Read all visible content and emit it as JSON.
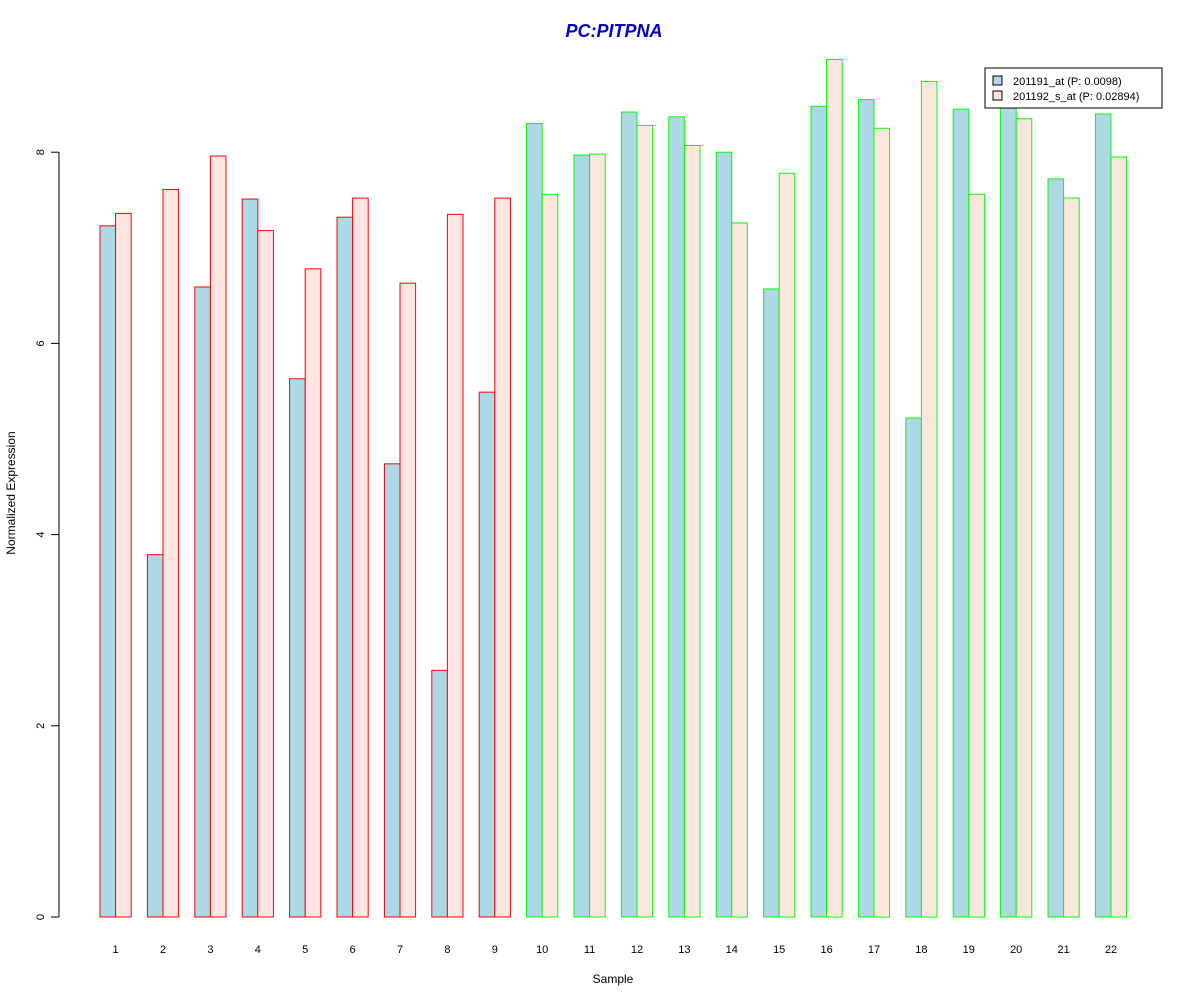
{
  "chart_data": {
    "type": "bar",
    "title": "PC:PITPNA",
    "xlabel": "Sample",
    "ylabel": "Normalized Expression",
    "ylim": [
      0,
      9
    ],
    "yticks": [
      0,
      2,
      4,
      6,
      8
    ],
    "categories": [
      "1",
      "2",
      "3",
      "4",
      "5",
      "6",
      "7",
      "8",
      "9",
      "10",
      "11",
      "12",
      "13",
      "14",
      "15",
      "16",
      "17",
      "18",
      "19",
      "20",
      "21",
      "22"
    ],
    "group_border_colors": [
      "#ff0000",
      "#ff0000",
      "#ff0000",
      "#ff0000",
      "#ff0000",
      "#ff0000",
      "#ff0000",
      "#ff0000",
      "#ff0000",
      "#00ff00",
      "#00ff00",
      "#00ff00",
      "#00ff00",
      "#00ff00",
      "#00ff00",
      "#00ff00",
      "#00ff00",
      "#00ff00",
      "#00ff00",
      "#00ff00",
      "#00ff00",
      "#00ff00"
    ],
    "series": [
      {
        "name": "201191_at (P: 0.0098)",
        "fill_red_group": "#add8e6",
        "fill_green_group": "#add8e6",
        "values": [
          7.23,
          3.79,
          6.59,
          7.51,
          5.63,
          7.32,
          4.74,
          2.58,
          5.49,
          8.3,
          7.97,
          8.42,
          8.37,
          8.0,
          6.57,
          8.48,
          8.55,
          5.22,
          8.45,
          8.65,
          7.72,
          8.4
        ]
      },
      {
        "name": "201192_s_at (P: 0.02894)",
        "fill_red_group": "#ffe4e1",
        "fill_green_group": "#fae7de",
        "values": [
          7.36,
          7.61,
          7.96,
          7.18,
          6.78,
          7.52,
          6.63,
          7.35,
          7.52,
          7.56,
          7.98,
          8.28,
          8.07,
          7.26,
          7.78,
          8.97,
          8.25,
          8.74,
          7.56,
          8.35,
          7.52,
          7.95
        ]
      }
    ],
    "legend_position": "top-right",
    "title_color": "#0000cc",
    "grid": false
  }
}
